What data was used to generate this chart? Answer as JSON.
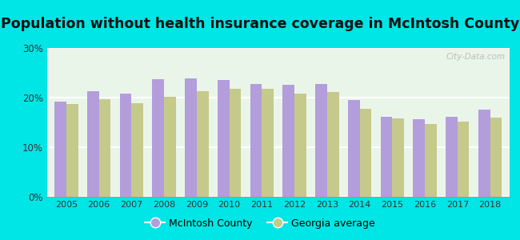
{
  "title": "Population without health insurance coverage in McIntosh County",
  "years": [
    2005,
    2006,
    2007,
    2008,
    2009,
    2010,
    2011,
    2012,
    2013,
    2014,
    2015,
    2016,
    2017,
    2018
  ],
  "mcintosh": [
    19.2,
    21.3,
    20.8,
    23.7,
    23.8,
    23.6,
    22.8,
    22.6,
    22.8,
    19.5,
    16.2,
    15.7,
    16.1,
    17.6
  ],
  "georgia": [
    18.7,
    19.7,
    18.9,
    20.1,
    21.3,
    21.8,
    21.8,
    20.8,
    21.2,
    17.7,
    15.8,
    14.6,
    15.1,
    15.9
  ],
  "mcintosh_color": "#b39ddb",
  "georgia_color": "#c5c98a",
  "background_outer": "#00e5e5",
  "background_inner_top": "#e8f5e9",
  "background_inner_bottom": "#f5fff5",
  "title_fontsize": 12.5,
  "ylim": [
    0,
    30
  ],
  "yticks": [
    0,
    10,
    20,
    30
  ],
  "ytick_labels": [
    "0%",
    "10%",
    "20%",
    "30%"
  ],
  "legend_mcintosh": "McIntosh County",
  "legend_georgia": "Georgia average",
  "watermark": "City-Data.com"
}
